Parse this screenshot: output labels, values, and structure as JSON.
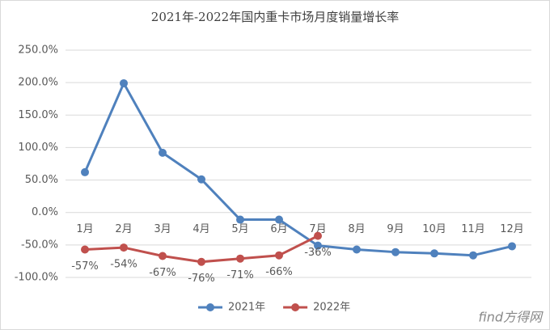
{
  "chart_data": {
    "type": "line",
    "title": "2021年-2022年国内重卡市场月度销量增长率",
    "categories": [
      "1月",
      "2月",
      "3月",
      "4月",
      "5月",
      "6月",
      "7月",
      "8月",
      "9月",
      "10月",
      "11月",
      "12月"
    ],
    "series": [
      {
        "name": "2021年",
        "color": "#4f81bd",
        "values": [
          62,
          199,
          92,
          51,
          -11,
          -11,
          -51,
          -57,
          -61,
          -63,
          -66,
          -52
        ]
      },
      {
        "name": "2022年",
        "color": "#c0504d",
        "values": [
          -57,
          -54,
          -67,
          -76,
          -71,
          -66,
          -36,
          null,
          null,
          null,
          null,
          null
        ],
        "value_labels": [
          "-57%",
          "-54%",
          "-67%",
          "-76%",
          "-71%",
          "-66%",
          "-36%",
          null,
          null,
          null,
          null,
          null
        ]
      }
    ],
    "ylim": [
      -100,
      250
    ],
    "yticks": [
      {
        "value": -100,
        "label": "-100.0%"
      },
      {
        "value": -50,
        "label": "-50.0%"
      },
      {
        "value": 0,
        "label": "0.0%"
      },
      {
        "value": 50,
        "label": "50.0%"
      },
      {
        "value": 100,
        "label": "100.0%"
      },
      {
        "value": 150,
        "label": "150.0%"
      },
      {
        "value": 200,
        "label": "200.0%"
      },
      {
        "value": 250,
        "label": "250.0%"
      }
    ],
    "grid": true,
    "legend": "bottom",
    "watermark": "find方得网"
  }
}
